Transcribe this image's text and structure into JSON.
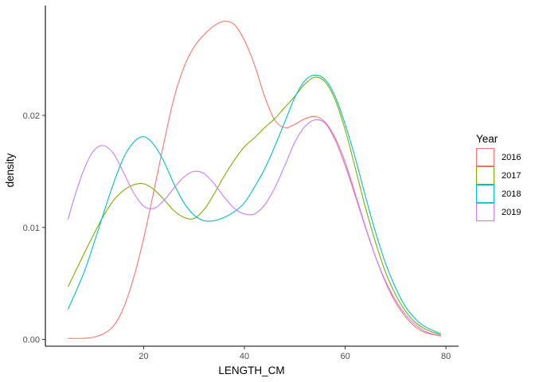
{
  "chart_data": {
    "type": "line",
    "xlabel": "LENGTH_CM",
    "ylabel": "density",
    "xlim": [
      0.5,
      82.5
    ],
    "ylim": [
      -0.0006,
      0.0298
    ],
    "x_ticks": [
      20,
      40,
      60,
      80
    ],
    "x_tick_labels": [
      "20",
      "40",
      "60",
      "80"
    ],
    "y_ticks": [
      0.0,
      0.01,
      0.02
    ],
    "y_tick_labels": [
      "0.00",
      "0.01",
      "0.02"
    ],
    "grid": false,
    "legend": {
      "title": "Year",
      "position": "right"
    },
    "series": [
      {
        "name": "2016",
        "color": "#F8766D",
        "x": [
          5,
          8,
          10,
          12,
          14,
          16,
          18,
          20,
          22,
          24,
          26,
          28,
          30,
          32,
          34,
          36,
          38,
          40,
          42,
          44,
          46,
          48,
          50,
          52,
          54,
          56,
          58,
          60,
          62,
          64,
          66,
          68,
          70,
          72,
          74,
          76,
          79
        ],
        "y": [
          0.0001,
          0.0001,
          0.0002,
          0.0005,
          0.0012,
          0.0028,
          0.0055,
          0.009,
          0.0132,
          0.0175,
          0.0215,
          0.0243,
          0.0261,
          0.0272,
          0.028,
          0.0284,
          0.0281,
          0.0267,
          0.0245,
          0.0217,
          0.0196,
          0.0189,
          0.0192,
          0.0197,
          0.0199,
          0.0194,
          0.018,
          0.0158,
          0.013,
          0.0101,
          0.0074,
          0.0051,
          0.0033,
          0.002,
          0.0011,
          0.0006,
          0.0003
        ]
      },
      {
        "name": "2017",
        "color": "#7CAE00",
        "x": [
          5,
          8,
          10,
          12,
          14,
          16,
          18,
          20,
          22,
          24,
          26,
          28,
          30,
          32,
          34,
          36,
          38,
          40,
          42,
          44,
          46,
          48,
          50,
          52,
          54,
          56,
          58,
          60,
          62,
          64,
          66,
          68,
          70,
          72,
          74,
          76,
          79
        ],
        "y": [
          0.0047,
          0.0075,
          0.0093,
          0.011,
          0.0124,
          0.0133,
          0.0138,
          0.0139,
          0.0134,
          0.0125,
          0.0115,
          0.0109,
          0.0108,
          0.0116,
          0.013,
          0.0146,
          0.016,
          0.0172,
          0.018,
          0.0189,
          0.0197,
          0.0207,
          0.0217,
          0.0228,
          0.0234,
          0.023,
          0.0214,
          0.0187,
          0.0153,
          0.0118,
          0.0087,
          0.006,
          0.004,
          0.0025,
          0.0015,
          0.0009,
          0.0004
        ]
      },
      {
        "name": "2018",
        "color": "#00BFC4",
        "x": [
          5,
          8,
          10,
          12,
          14,
          16,
          18,
          20,
          22,
          24,
          26,
          28,
          30,
          32,
          34,
          36,
          38,
          40,
          42,
          44,
          46,
          48,
          50,
          52,
          54,
          56,
          58,
          60,
          62,
          64,
          66,
          68,
          70,
          72,
          74,
          76,
          79
        ],
        "y": [
          0.0027,
          0.0058,
          0.0084,
          0.0112,
          0.0139,
          0.0162,
          0.0176,
          0.0181,
          0.0174,
          0.0159,
          0.0139,
          0.0122,
          0.0111,
          0.0106,
          0.0106,
          0.0109,
          0.0114,
          0.0122,
          0.0136,
          0.0152,
          0.0172,
          0.0194,
          0.0216,
          0.0231,
          0.0236,
          0.0232,
          0.0217,
          0.0192,
          0.0162,
          0.0128,
          0.0096,
          0.0068,
          0.0046,
          0.0029,
          0.0018,
          0.0011,
          0.0005
        ]
      },
      {
        "name": "2019",
        "color": "#C77CFF",
        "x": [
          5,
          6,
          8,
          10,
          12,
          14,
          16,
          18,
          20,
          22,
          24,
          26,
          28,
          30,
          32,
          34,
          36,
          38,
          40,
          42,
          44,
          46,
          48,
          50,
          52,
          54,
          56,
          58,
          60,
          62,
          64,
          66,
          68,
          70,
          72,
          74,
          76,
          79
        ],
        "y": [
          0.0107,
          0.0123,
          0.015,
          0.0168,
          0.0173,
          0.0166,
          0.0149,
          0.0131,
          0.0119,
          0.0117,
          0.0124,
          0.0135,
          0.0145,
          0.015,
          0.0148,
          0.0139,
          0.0127,
          0.0117,
          0.0112,
          0.0112,
          0.012,
          0.0135,
          0.0155,
          0.0176,
          0.019,
          0.0196,
          0.0193,
          0.0178,
          0.0155,
          0.0128,
          0.01,
          0.0074,
          0.0052,
          0.0035,
          0.0022,
          0.0013,
          0.0007,
          0.0003
        ]
      }
    ]
  }
}
